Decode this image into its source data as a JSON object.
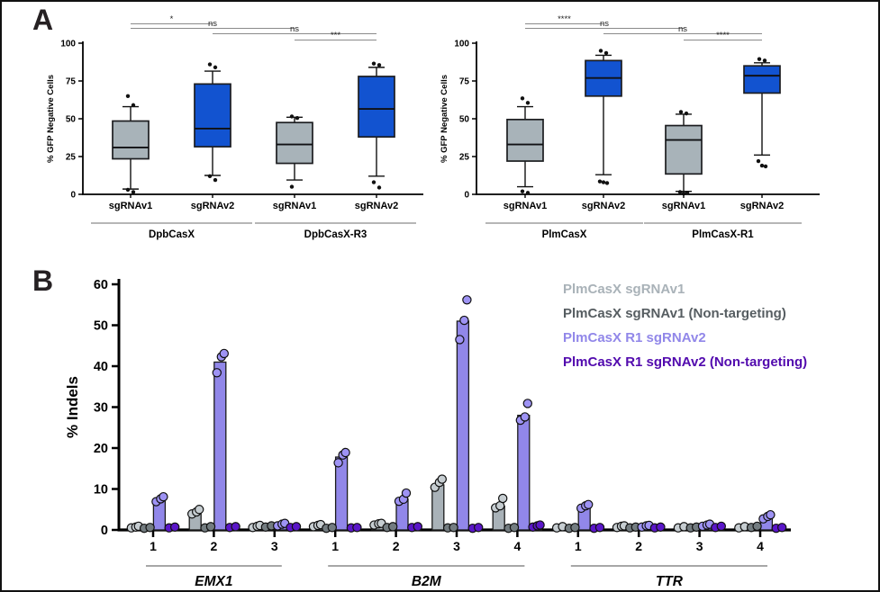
{
  "figure": {
    "panel_a_label": "A",
    "panel_b_label": "B"
  },
  "colors": {
    "box_gray": "#a8b3b9",
    "box_blue": "#1253d0",
    "axis": "#000000",
    "sig_line": "#8a8a8a",
    "outlier_dot": "#111111"
  },
  "chart_data": [
    {
      "type": "box",
      "ylabel": "% GFP Negative Cells",
      "ylim": [
        0,
        100
      ],
      "yticks": [
        0,
        25,
        50,
        75,
        100
      ],
      "groups": [
        {
          "label": "DpbCasX"
        },
        {
          "label": "DpbCasX-R3"
        }
      ],
      "categories": [
        "sgRNAv1",
        "sgRNAv2",
        "sgRNAv1",
        "sgRNAv2"
      ],
      "boxes": [
        {
          "color_key": "gray",
          "whisker_low": 3.5,
          "q1": 23.5,
          "median": 31,
          "q3": 48.5,
          "whisker_high": 58,
          "outliers_high": [
            65,
            59
          ],
          "outliers_low": [
            3,
            1.5
          ]
        },
        {
          "color_key": "blue",
          "whisker_low": 12.5,
          "q1": 31.5,
          "median": 43.5,
          "q3": 73,
          "whisker_high": 81.5,
          "outliers_high": [
            86,
            84
          ],
          "outliers_low": [
            12,
            9.5
          ]
        },
        {
          "color_key": "gray",
          "whisker_low": 9.5,
          "q1": 20.5,
          "median": 33,
          "q3": 47.5,
          "whisker_high": 51,
          "outliers_high": [
            51.5,
            50.5
          ],
          "outliers_low": [
            5
          ]
        },
        {
          "color_key": "blue",
          "whisker_low": 12,
          "q1": 38,
          "median": 56.5,
          "q3": 78,
          "whisker_high": 84,
          "outliers_high": [
            86.5,
            85.5
          ],
          "outliers_low": [
            8,
            4.5
          ]
        }
      ],
      "significance": [
        {
          "from": 0,
          "to": 1,
          "label": "*"
        },
        {
          "from": 0,
          "to": 2,
          "label": "ns"
        },
        {
          "from": 1,
          "to": 3,
          "label": "ns"
        },
        {
          "from": 2,
          "to": 3,
          "label": "***"
        }
      ]
    },
    {
      "type": "box",
      "ylabel": "% GFP Negative Cells",
      "ylim": [
        0,
        100
      ],
      "yticks": [
        0,
        25,
        50,
        75,
        100
      ],
      "groups": [
        {
          "label": "PlmCasX"
        },
        {
          "label": "PlmCasX-R1"
        }
      ],
      "categories": [
        "sgRNAv1",
        "sgRNAv2",
        "sgRNAv1",
        "sgRNAv2"
      ],
      "boxes": [
        {
          "color_key": "gray",
          "whisker_low": 5,
          "q1": 22,
          "median": 33,
          "q3": 49.5,
          "whisker_high": 58,
          "outliers_high": [
            63.5,
            60.5
          ],
          "outliers_low": [
            2,
            1
          ]
        },
        {
          "color_key": "blue",
          "whisker_low": 13,
          "q1": 65,
          "median": 77,
          "q3": 88.5,
          "whisker_high": 92,
          "outliers_high": [
            95,
            93.5
          ],
          "outliers_low": [
            8.5,
            8,
            7.5
          ]
        },
        {
          "color_key": "gray",
          "whisker_low": 2,
          "q1": 13.5,
          "median": 36,
          "q3": 45.5,
          "whisker_high": 53,
          "outliers_high": [
            54.5,
            53.5
          ],
          "outliers_low": [
            1.5,
            0.5,
            1
          ]
        },
        {
          "color_key": "blue",
          "whisker_low": 26,
          "q1": 67,
          "median": 78.5,
          "q3": 85,
          "whisker_high": 87,
          "outliers_high": [
            89.5,
            88.5
          ],
          "outliers_low": [
            22,
            19,
            18.5
          ]
        }
      ],
      "significance": [
        {
          "from": 0,
          "to": 1,
          "label": "****"
        },
        {
          "from": 0,
          "to": 2,
          "label": "ns"
        },
        {
          "from": 1,
          "to": 3,
          "label": "ns"
        },
        {
          "from": 2,
          "to": 3,
          "label": "****"
        }
      ]
    },
    {
      "type": "bar",
      "ylabel": "% Indels",
      "ylim": [
        0,
        60
      ],
      "yticks": [
        0,
        10,
        20,
        30,
        40,
        50,
        60
      ],
      "legend_position": "top-right",
      "series": [
        {
          "name": "PlmCasX sgRNAv1",
          "color": "#a9b2b8",
          "dot_color": "#c6cdd1"
        },
        {
          "name": "PlmCasX sgRNAv1 (Non-targeting)",
          "color": "#565d61",
          "dot_color": "#737c80"
        },
        {
          "name": "PlmCasX R1 sgRNAv2",
          "color": "#9187e9",
          "dot_color": "#9e93f4"
        },
        {
          "name": "PlmCasX R1 sgRNAv2 (Non-targeting)",
          "color": "#520aae",
          "dot_color": "#5a16c8"
        }
      ],
      "genes": [
        {
          "name": "EMX1",
          "sites": [
            {
              "label": "1",
              "values": [
                0.6,
                0.5,
                7.2,
                0.6
              ],
              "dots": [
                [
                  0.5,
                  0.7,
                  0.9
                ],
                [
                  0.4,
                  0.6
                ],
                [
                  6.9,
                  7.6,
                  8.1
                ],
                [
                  0.5,
                  0.7
                ]
              ]
            },
            {
              "label": "2",
              "values": [
                4.2,
                0.6,
                41.0,
                0.7
              ],
              "dots": [
                [
                  3.9,
                  4.4,
                  5.0
                ],
                [
                  0.5,
                  0.8
                ],
                [
                  38.4,
                  42.3,
                  43.1
                ],
                [
                  0.6,
                  0.8
                ]
              ]
            },
            {
              "label": "3",
              "values": [
                0.8,
                0.8,
                1.2,
                0.7
              ],
              "dots": [
                [
                  0.6,
                  0.9,
                  1.1
                ],
                [
                  0.7,
                  1.0
                ],
                [
                  1.0,
                  1.4,
                  1.6
                ],
                [
                  0.6,
                  0.8
                ]
              ]
            }
          ]
        },
        {
          "name": "B2M",
          "sites": [
            {
              "label": "1",
              "values": [
                1.0,
                0.5,
                17.8,
                0.5
              ],
              "dots": [
                [
                  0.8,
                  1.1,
                  1.3
                ],
                [
                  0.4,
                  0.6
                ],
                [
                  16.4,
                  18.3,
                  18.9
                ],
                [
                  0.5,
                  0.6
                ]
              ]
            },
            {
              "label": "2",
              "values": [
                1.4,
                0.7,
                7.6,
                0.7
              ],
              "dots": [
                [
                  1.2,
                  1.5,
                  1.6
                ],
                [
                  0.6,
                  0.8
                ],
                [
                  7.0,
                  7.5,
                  9.0
                ],
                [
                  0.6,
                  0.8
                ]
              ]
            },
            {
              "label": "3",
              "values": [
                11.0,
                0.5,
                51.0,
                0.5
              ],
              "dots": [
                [
                  10.4,
                  11.6,
                  12.4
                ],
                [
                  0.5,
                  0.6
                ],
                [
                  46.5,
                  51.2,
                  56.2
                ],
                [
                  0.4,
                  0.6
                ]
              ]
            },
            {
              "label": "4",
              "values": [
                5.8,
                0.5,
                28.0,
                0.9
              ],
              "dots": [
                [
                  5.4,
                  5.9,
                  7.7
                ],
                [
                  0.4,
                  0.6
                ],
                [
                  26.8,
                  27.6,
                  30.9
                ],
                [
                  0.7,
                  1.0,
                  1.2
                ]
              ]
            }
          ]
        },
        {
          "name": "TTR",
          "sites": [
            {
              "label": "1",
              "values": [
                0.6,
                0.5,
                5.6,
                0.5
              ],
              "dots": [
                [
                  0.5,
                  0.8
                ],
                [
                  0.4,
                  0.6
                ],
                [
                  5.3,
                  5.9,
                  6.2
                ],
                [
                  0.4,
                  0.6
                ]
              ]
            },
            {
              "label": "2",
              "values": [
                0.8,
                0.6,
                0.9,
                0.6
              ],
              "dots": [
                [
                  0.6,
                  0.9,
                  1.0
                ],
                [
                  0.5,
                  0.7
                ],
                [
                  0.7,
                  1.0,
                  1.1
                ],
                [
                  0.5,
                  0.7
                ]
              ]
            },
            {
              "label": "3",
              "values": [
                0.6,
                0.6,
                1.1,
                0.7
              ],
              "dots": [
                [
                  0.5,
                  0.8
                ],
                [
                  0.5,
                  0.7
                ],
                [
                  0.9,
                  1.2,
                  1.4
                ],
                [
                  0.6,
                  0.9
                ]
              ]
            },
            {
              "label": "4",
              "values": [
                0.6,
                0.7,
                3.1,
                0.5
              ],
              "dots": [
                [
                  0.5,
                  0.8
                ],
                [
                  0.6,
                  0.9
                ],
                [
                  2.7,
                  3.3,
                  3.7
                ],
                [
                  0.4,
                  0.6
                ]
              ]
            }
          ]
        }
      ]
    }
  ]
}
